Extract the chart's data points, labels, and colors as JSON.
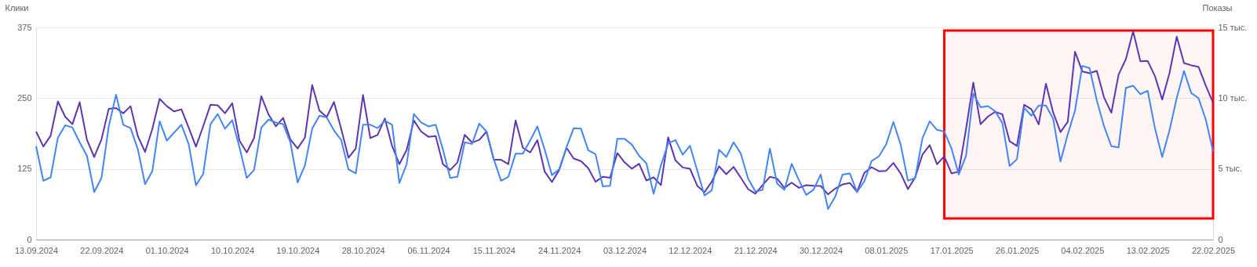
{
  "chart_data": {
    "type": "line",
    "ylabel": "Клики",
    "y2label": "Показы",
    "x": [
      "2024-09-13",
      "2024-09-14",
      "2024-09-15",
      "2024-09-16",
      "2024-09-17",
      "2024-09-18",
      "2024-09-19",
      "2024-09-20",
      "2024-09-21",
      "2024-09-22",
      "2024-09-23",
      "2024-09-24",
      "2024-09-25",
      "2024-09-26",
      "2024-09-27",
      "2024-09-28",
      "2024-09-29",
      "2024-09-30",
      "2024-10-01",
      "2024-10-02",
      "2024-10-03",
      "2024-10-04",
      "2024-10-05",
      "2024-10-06",
      "2024-10-07",
      "2024-10-08",
      "2024-10-09",
      "2024-10-10",
      "2024-10-11",
      "2024-10-12",
      "2024-10-13",
      "2024-10-14",
      "2024-10-15",
      "2024-10-16",
      "2024-10-17",
      "2024-10-18",
      "2024-10-19",
      "2024-10-20",
      "2024-10-21",
      "2024-10-22",
      "2024-10-23",
      "2024-10-24",
      "2024-10-25",
      "2024-10-26",
      "2024-10-27",
      "2024-10-28",
      "2024-10-29",
      "2024-10-30",
      "2024-10-31",
      "2024-11-01",
      "2024-11-02",
      "2024-11-03",
      "2024-11-04",
      "2024-11-05",
      "2024-11-06",
      "2024-11-07",
      "2024-11-08",
      "2024-11-09",
      "2024-11-10",
      "2024-11-11",
      "2024-11-12",
      "2024-11-13",
      "2024-11-14",
      "2024-11-15",
      "2024-11-16",
      "2024-11-17",
      "2024-11-18",
      "2024-11-19",
      "2024-11-20",
      "2024-11-21",
      "2024-11-22",
      "2024-11-23",
      "2024-11-24",
      "2024-11-25",
      "2024-11-26",
      "2024-11-27",
      "2024-11-28",
      "2024-11-29",
      "2024-11-30",
      "2024-12-01",
      "2024-12-02",
      "2024-12-03",
      "2024-12-04",
      "2024-12-05",
      "2024-12-06",
      "2024-12-07",
      "2024-12-08",
      "2024-12-09",
      "2024-12-10",
      "2024-12-11",
      "2024-12-12",
      "2024-12-13",
      "2024-12-14",
      "2024-12-15",
      "2024-12-16",
      "2024-12-17",
      "2024-12-18",
      "2024-12-19",
      "2024-12-20",
      "2024-12-21",
      "2024-12-22",
      "2024-12-23",
      "2024-12-24",
      "2024-12-25",
      "2024-12-26",
      "2024-12-27",
      "2024-12-28",
      "2024-12-29",
      "2024-12-30",
      "2024-12-31",
      "2025-01-01",
      "2025-01-02",
      "2025-01-03",
      "2025-01-04",
      "2025-01-05",
      "2025-01-06",
      "2025-01-07",
      "2025-01-08",
      "2025-01-09",
      "2025-01-10",
      "2025-01-11",
      "2025-01-12",
      "2025-01-13",
      "2025-01-14",
      "2025-01-15",
      "2025-01-16",
      "2025-01-17",
      "2025-01-18",
      "2025-01-19",
      "2025-01-20",
      "2025-01-21",
      "2025-01-22",
      "2025-01-23",
      "2025-01-24",
      "2025-01-25",
      "2025-01-26",
      "2025-01-27",
      "2025-01-28",
      "2025-01-29",
      "2025-01-30",
      "2025-01-31",
      "2025-02-01",
      "2025-02-02",
      "2025-02-03",
      "2025-02-04",
      "2025-02-05",
      "2025-02-06",
      "2025-02-07",
      "2025-02-08",
      "2025-02-09",
      "2025-02-10",
      "2025-02-11",
      "2025-02-12",
      "2025-02-13",
      "2025-02-14",
      "2025-02-15",
      "2025-02-16",
      "2025-02-17",
      "2025-02-18",
      "2025-02-19",
      "2025-02-20",
      "2025-02-21",
      "2025-02-22"
    ],
    "series": [
      {
        "axis": "y2",
        "color": "#5e35b1",
        "values": [
          7.64,
          6.58,
          7.34,
          9.77,
          8.69,
          8.16,
          9.71,
          7.05,
          5.84,
          7.08,
          9.25,
          9.3,
          8.93,
          9.43,
          7.32,
          6.2,
          7.82,
          9.95,
          9.43,
          9.06,
          9.21,
          7.92,
          6.57,
          8.01,
          9.53,
          9.49,
          8.93,
          9.64,
          6.99,
          6.16,
          7.18,
          10.14,
          8.84,
          8.01,
          8.6,
          7.08,
          6.44,
          7.21,
          10.93,
          9.12,
          8.66,
          9.73,
          7.82,
          5.79,
          6.44,
          10.23,
          7.18,
          7.4,
          8.56,
          6.62,
          5.33,
          6.34,
          8.42,
          7.64,
          7.27,
          7.32,
          5.33,
          4.92,
          5.46,
          7.4,
          6.86,
          7.05,
          7.64,
          5.64,
          5.64,
          5.33,
          8.42,
          6.49,
          6.16,
          7.03,
          4.81,
          4.07,
          4.92,
          6.49,
          5.73,
          5.55,
          5.05,
          4.09,
          4.44,
          4.37,
          6.12,
          5.46,
          5.01,
          5.36,
          4.18,
          4.4,
          3.85,
          7.23,
          5.6,
          5.1,
          5.01,
          3.81,
          3.35,
          4.09,
          5.18,
          4.62,
          5.14,
          4.37,
          3.57,
          3.24,
          3.85,
          4.44,
          4.31,
          3.66,
          4.03,
          3.66,
          3.85,
          3.81,
          3.79,
          3.2,
          3.61,
          3.9,
          4.0,
          3.38,
          4.72,
          5.12,
          4.83,
          4.86,
          5.42,
          4.68,
          3.57,
          4.4,
          6.01,
          6.68,
          5.33,
          5.88,
          4.68,
          4.81,
          7.82,
          11.1,
          8.16,
          8.69,
          9.03,
          8.86,
          6.95,
          6.62,
          9.53,
          9.21,
          8.14,
          11.02,
          8.97,
          7.6,
          8.32,
          13.28,
          11.89,
          11.76,
          11.93,
          10.04,
          8.97,
          11.67,
          12.76,
          14.72,
          12.6,
          12.63,
          11.56,
          9.9,
          11.76,
          14.35,
          12.48,
          12.32,
          12.21,
          10.88,
          9.67
        ]
      },
      {
        "axis": "y",
        "color": "#4285f4",
        "values": [
          165,
          104,
          110,
          180,
          202,
          198,
          172,
          148,
          84,
          109,
          200,
          256,
          203,
          197,
          160,
          98,
          121,
          209,
          175,
          189,
          203,
          169,
          96,
          116,
          204,
          222,
          196,
          211,
          163,
          109,
          123,
          198,
          212,
          207,
          204,
          172,
          101,
          131,
          196,
          219,
          216,
          193,
          176,
          124,
          117,
          203,
          203,
          197,
          210,
          203,
          100,
          133,
          222,
          207,
          200,
          203,
          159,
          109,
          111,
          172,
          169,
          205,
          191,
          142,
          104,
          111,
          152,
          152,
          175,
          200,
          159,
          114,
          124,
          163,
          197,
          196,
          158,
          151,
          94,
          95,
          178,
          178,
          168,
          148,
          135,
          81,
          131,
          170,
          176,
          150,
          166,
          122,
          78,
          87,
          159,
          146,
          172,
          152,
          108,
          85,
          88,
          161,
          99,
          88,
          134,
          105,
          79,
          88,
          115,
          54,
          76,
          115,
          117,
          84,
          103,
          139,
          147,
          168,
          208,
          168,
          104,
          109,
          179,
          209,
          194,
          191,
          161,
          115,
          148,
          258,
          234,
          236,
          227,
          206,
          130,
          142,
          233,
          219,
          237,
          237,
          213,
          138,
          186,
          228,
          307,
          303,
          246,
          200,
          165,
          163,
          268,
          272,
          257,
          263,
          197,
          146,
          193,
          250,
          298,
          259,
          250,
          212,
          156
        ]
      }
    ],
    "xlim": [
      "2024-09-13",
      "2025-02-22"
    ],
    "xticks": [
      {
        "value": "2024-09-13",
        "label": "13.09.2024"
      },
      {
        "value": "2024-09-22",
        "label": "22.09.2024"
      },
      {
        "value": "2024-10-01",
        "label": "01.10.2024"
      },
      {
        "value": "2024-10-10",
        "label": "10.10.2024"
      },
      {
        "value": "2024-10-19",
        "label": "19.10.2024"
      },
      {
        "value": "2024-10-28",
        "label": "28.10.2024"
      },
      {
        "value": "2024-11-06",
        "label": "06.11.2024"
      },
      {
        "value": "2024-11-15",
        "label": "15.11.2024"
      },
      {
        "value": "2024-11-24",
        "label": "24.11.2024"
      },
      {
        "value": "2024-12-03",
        "label": "03.12.2024"
      },
      {
        "value": "2024-12-12",
        "label": "12.12.2024"
      },
      {
        "value": "2024-12-21",
        "label": "21.12.2024"
      },
      {
        "value": "2024-12-30",
        "label": "30.12.2024"
      },
      {
        "value": "2025-01-08",
        "label": "08.01.2025"
      },
      {
        "value": "2025-01-17",
        "label": "17.01.2025"
      },
      {
        "value": "2025-01-26",
        "label": "26.01.2025"
      },
      {
        "value": "2025-02-04",
        "label": "04.02.2025"
      },
      {
        "value": "2025-02-13",
        "label": "13.02.2025"
      },
      {
        "value": "2025-02-22",
        "label": "22.02.2025"
      }
    ],
    "ylim": [
      0,
      375
    ],
    "yticks": [
      0,
      125,
      250,
      375
    ],
    "y2lim": [
      0,
      15
    ],
    "y2ticks": [
      0,
      {
        "value": 5,
        "label": "5 тыс."
      },
      {
        "value": 10,
        "label": "10 тыс."
      },
      {
        "value": 15,
        "label": "15 тыс."
      }
    ],
    "bands": [
      {
        "axis": "x",
        "from": "2025-01-16",
        "to": "2025-02-22",
        "color": "#ff0000"
      }
    ],
    "grid": "y"
  }
}
